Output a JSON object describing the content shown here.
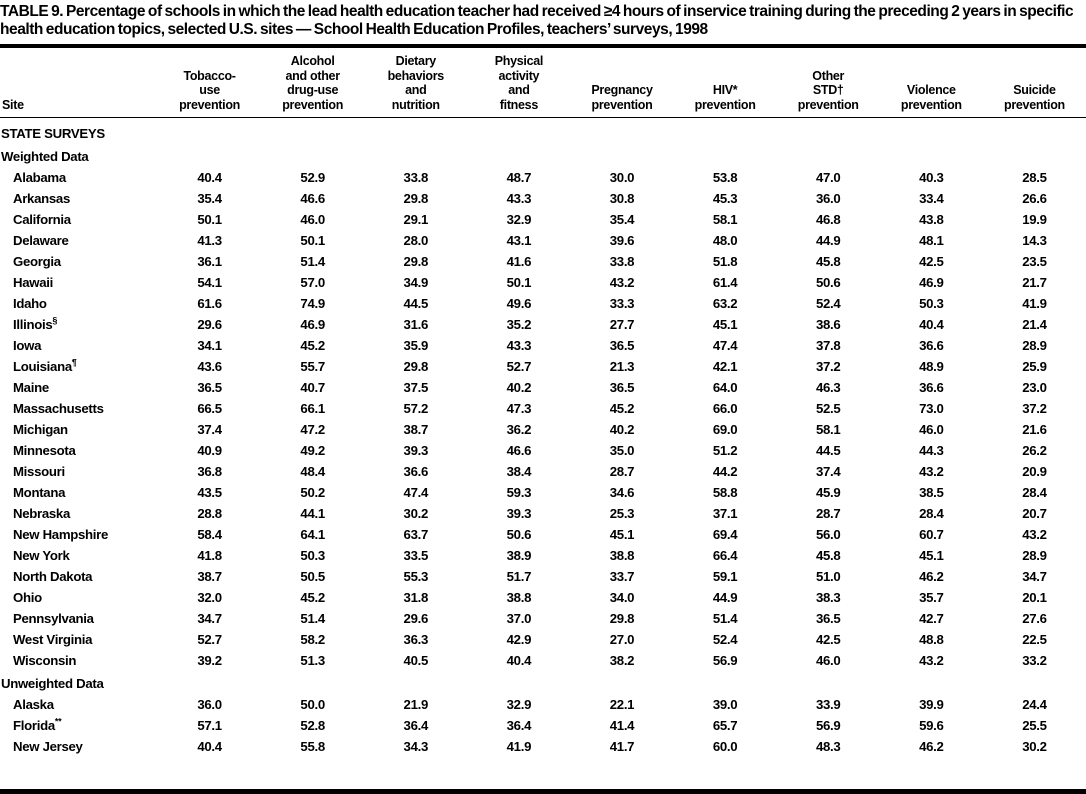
{
  "page": {
    "title": "TABLE 9. Percentage of schools in which the lead health education teacher had received ≥4 hours of inservice training during the preceding 2 years in specific health education topics, selected U.S. sites — School Health Education Profiles, teachers’ surveys, 1998"
  },
  "table": {
    "columns": [
      {
        "lines": [
          "Site"
        ]
      },
      {
        "lines": [
          "Tobacco-",
          "use",
          "prevention"
        ]
      },
      {
        "lines": [
          "Alcohol",
          "and other",
          "drug-use",
          "prevention"
        ]
      },
      {
        "lines": [
          "Dietary",
          "behaviors",
          "and",
          "nutrition"
        ]
      },
      {
        "lines": [
          "Physical",
          "activity",
          "and",
          "fitness"
        ]
      },
      {
        "lines": [
          "Pregnancy",
          "prevention"
        ]
      },
      {
        "lines": [
          "HIV*",
          "prevention"
        ]
      },
      {
        "lines": [
          "Other",
          "STD†",
          "prevention"
        ]
      },
      {
        "lines": [
          "Violence",
          "prevention"
        ]
      },
      {
        "lines": [
          "Suicide",
          "prevention"
        ]
      }
    ],
    "groups": [
      {
        "header": "STATE SURVEYS",
        "subgroups": [
          {
            "header": "Weighted Data",
            "rows": [
              {
                "site": "Alabama",
                "marker": "",
                "values": [
                  "40.4",
                  "52.9",
                  "33.8",
                  "48.7",
                  "30.0",
                  "53.8",
                  "47.0",
                  "40.3",
                  "28.5"
                ]
              },
              {
                "site": "Arkansas",
                "marker": "",
                "values": [
                  "35.4",
                  "46.6",
                  "29.8",
                  "43.3",
                  "30.8",
                  "45.3",
                  "36.0",
                  "33.4",
                  "26.6"
                ]
              },
              {
                "site": "California",
                "marker": "",
                "values": [
                  "50.1",
                  "46.0",
                  "29.1",
                  "32.9",
                  "35.4",
                  "58.1",
                  "46.8",
                  "43.8",
                  "19.9"
                ]
              },
              {
                "site": "Delaware",
                "marker": "",
                "values": [
                  "41.3",
                  "50.1",
                  "28.0",
                  "43.1",
                  "39.6",
                  "48.0",
                  "44.9",
                  "48.1",
                  "14.3"
                ]
              },
              {
                "site": "Georgia",
                "marker": "",
                "values": [
                  "36.1",
                  "51.4",
                  "29.8",
                  "41.6",
                  "33.8",
                  "51.8",
                  "45.8",
                  "42.5",
                  "23.5"
                ]
              },
              {
                "site": "Hawaii",
                "marker": "",
                "values": [
                  "54.1",
                  "57.0",
                  "34.9",
                  "50.1",
                  "43.2",
                  "61.4",
                  "50.6",
                  "46.9",
                  "21.7"
                ]
              },
              {
                "site": "Idaho",
                "marker": "",
                "values": [
                  "61.6",
                  "74.9",
                  "44.5",
                  "49.6",
                  "33.3",
                  "63.2",
                  "52.4",
                  "50.3",
                  "41.9"
                ]
              },
              {
                "site": "Illinois",
                "marker": "§",
                "values": [
                  "29.6",
                  "46.9",
                  "31.6",
                  "35.2",
                  "27.7",
                  "45.1",
                  "38.6",
                  "40.4",
                  "21.4"
                ]
              },
              {
                "site": "Iowa",
                "marker": "",
                "values": [
                  "34.1",
                  "45.2",
                  "35.9",
                  "43.3",
                  "36.5",
                  "47.4",
                  "37.8",
                  "36.6",
                  "28.9"
                ]
              },
              {
                "site": "Louisiana",
                "marker": "¶",
                "values": [
                  "43.6",
                  "55.7",
                  "29.8",
                  "52.7",
                  "21.3",
                  "42.1",
                  "37.2",
                  "48.9",
                  "25.9"
                ]
              },
              {
                "site": "Maine",
                "marker": "",
                "values": [
                  "36.5",
                  "40.7",
                  "37.5",
                  "40.2",
                  "36.5",
                  "64.0",
                  "46.3",
                  "36.6",
                  "23.0"
                ]
              },
              {
                "site": "Massachusetts",
                "marker": "",
                "values": [
                  "66.5",
                  "66.1",
                  "57.2",
                  "47.3",
                  "45.2",
                  "66.0",
                  "52.5",
                  "73.0",
                  "37.2"
                ]
              },
              {
                "site": "Michigan",
                "marker": "",
                "values": [
                  "37.4",
                  "47.2",
                  "38.7",
                  "36.2",
                  "40.2",
                  "69.0",
                  "58.1",
                  "46.0",
                  "21.6"
                ]
              },
              {
                "site": "Minnesota",
                "marker": "",
                "values": [
                  "40.9",
                  "49.2",
                  "39.3",
                  "46.6",
                  "35.0",
                  "51.2",
                  "44.5",
                  "44.3",
                  "26.2"
                ]
              },
              {
                "site": "Missouri",
                "marker": "",
                "values": [
                  "36.8",
                  "48.4",
                  "36.6",
                  "38.4",
                  "28.7",
                  "44.2",
                  "37.4",
                  "43.2",
                  "20.9"
                ]
              },
              {
                "site": "Montana",
                "marker": "",
                "values": [
                  "43.5",
                  "50.2",
                  "47.4",
                  "59.3",
                  "34.6",
                  "58.8",
                  "45.9",
                  "38.5",
                  "28.4"
                ]
              },
              {
                "site": "Nebraska",
                "marker": "",
                "values": [
                  "28.8",
                  "44.1",
                  "30.2",
                  "39.3",
                  "25.3",
                  "37.1",
                  "28.7",
                  "28.4",
                  "20.7"
                ]
              },
              {
                "site": "New Hampshire",
                "marker": "",
                "values": [
                  "58.4",
                  "64.1",
                  "63.7",
                  "50.6",
                  "45.1",
                  "69.4",
                  "56.0",
                  "60.7",
                  "43.2"
                ]
              },
              {
                "site": "New York",
                "marker": "",
                "values": [
                  "41.8",
                  "50.3",
                  "33.5",
                  "38.9",
                  "38.8",
                  "66.4",
                  "45.8",
                  "45.1",
                  "28.9"
                ]
              },
              {
                "site": "North Dakota",
                "marker": "",
                "values": [
                  "38.7",
                  "50.5",
                  "55.3",
                  "51.7",
                  "33.7",
                  "59.1",
                  "51.0",
                  "46.2",
                  "34.7"
                ]
              },
              {
                "site": "Ohio",
                "marker": "",
                "values": [
                  "32.0",
                  "45.2",
                  "31.8",
                  "38.8",
                  "34.0",
                  "44.9",
                  "38.3",
                  "35.7",
                  "20.1"
                ]
              },
              {
                "site": "Pennsylvania",
                "marker": "",
                "values": [
                  "34.7",
                  "51.4",
                  "29.6",
                  "37.0",
                  "29.8",
                  "51.4",
                  "36.5",
                  "42.7",
                  "27.6"
                ]
              },
              {
                "site": "West Virginia",
                "marker": "",
                "values": [
                  "52.7",
                  "58.2",
                  "36.3",
                  "42.9",
                  "27.0",
                  "52.4",
                  "42.5",
                  "48.8",
                  "22.5"
                ]
              },
              {
                "site": "Wisconsin",
                "marker": "",
                "values": [
                  "39.2",
                  "51.3",
                  "40.5",
                  "40.4",
                  "38.2",
                  "56.9",
                  "46.0",
                  "43.2",
                  "33.2"
                ]
              }
            ]
          },
          {
            "header": "Unweighted Data",
            "rows": [
              {
                "site": "Alaska",
                "marker": "",
                "values": [
                  "36.0",
                  "50.0",
                  "21.9",
                  "32.9",
                  "22.1",
                  "39.0",
                  "33.9",
                  "39.9",
                  "24.4"
                ]
              },
              {
                "site": "Florida",
                "marker": "**",
                "values": [
                  "57.1",
                  "52.8",
                  "36.4",
                  "36.4",
                  "41.4",
                  "65.7",
                  "56.9",
                  "59.6",
                  "25.5"
                ]
              },
              {
                "site": "New Jersey",
                "marker": "",
                "values": [
                  "40.4",
                  "55.8",
                  "34.3",
                  "41.9",
                  "41.7",
                  "60.0",
                  "48.3",
                  "46.2",
                  "30.2"
                ]
              }
            ]
          }
        ]
      }
    ]
  }
}
